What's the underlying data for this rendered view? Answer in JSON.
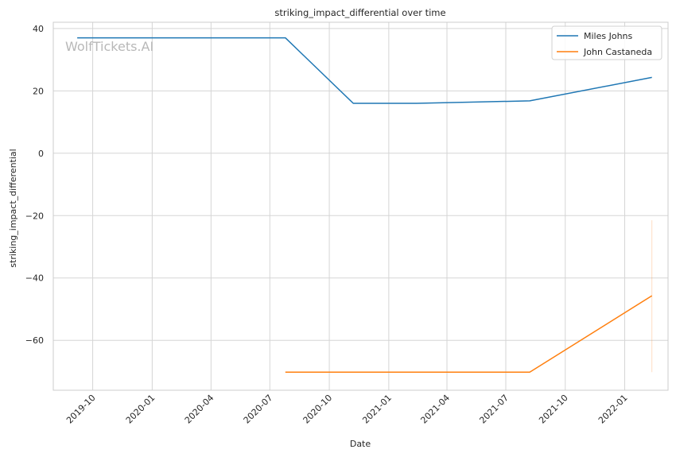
{
  "chart_data": {
    "type": "line",
    "title": "striking_impact_differential over time",
    "xlabel": "Date",
    "ylabel": "striking_impact_differential",
    "watermark": "WolfTickets.AI",
    "xlim": [
      "2019-08-01",
      "2022-03-09"
    ],
    "ylim": [
      -76,
      42
    ],
    "x_ticks": [
      "2019-10",
      "2020-01",
      "2020-04",
      "2020-07",
      "2020-10",
      "2021-01",
      "2021-04",
      "2021-07",
      "2021-10",
      "2022-01"
    ],
    "y_ticks": [
      -60,
      -40,
      -20,
      0,
      20,
      40
    ],
    "grid": true,
    "legend_position": "top-right",
    "series": [
      {
        "name": "Miles Johns",
        "color": "#1f77b4",
        "points": [
          {
            "x": "2019-09-07",
            "y": 37
          },
          {
            "x": "2020-07-25",
            "y": 37
          },
          {
            "x": "2020-11-07",
            "y": 16
          },
          {
            "x": "2021-02-13",
            "y": 16
          },
          {
            "x": "2021-08-07",
            "y": 16.8
          },
          {
            "x": "2022-02-12",
            "y": 24.3
          }
        ]
      },
      {
        "name": "John Castaneda",
        "color": "#ff7f0e",
        "points": [
          {
            "x": "2020-07-25",
            "y": -70.2
          },
          {
            "x": "2021-08-07",
            "y": -70.2
          },
          {
            "x": "2022-02-12",
            "y": -45.7
          }
        ],
        "error_band": {
          "x": "2022-02-12",
          "low": -70.2,
          "high": -21.5
        }
      }
    ]
  }
}
